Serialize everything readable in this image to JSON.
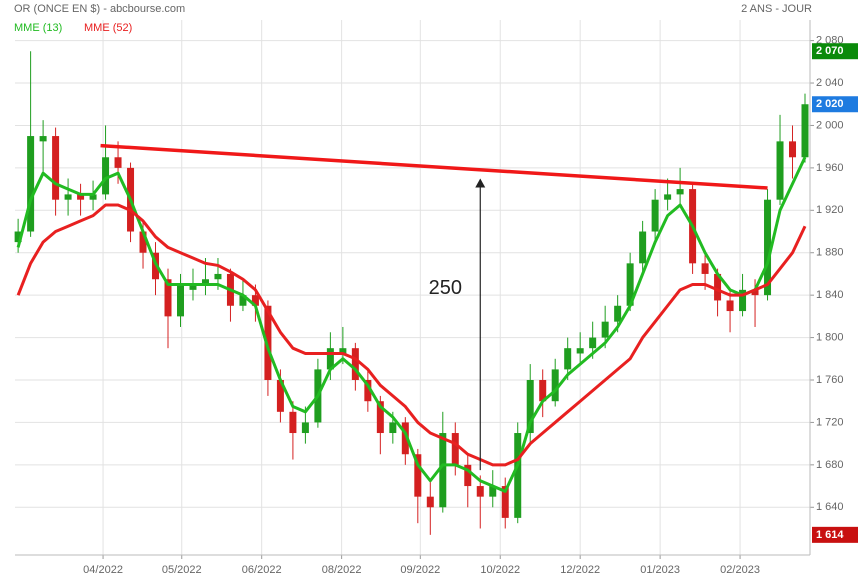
{
  "chart_data": {
    "type": "candlestick",
    "title": "OR (ONCE EN $) - abcbourse.com",
    "subtitle": "2 ANS - JOUR",
    "up_color": "#1f9e1f",
    "down_color": "#d42020",
    "ohlc": [
      [
        1890,
        1912,
        1880,
        1900
      ],
      [
        1900,
        2070,
        1895,
        1990
      ],
      [
        1985,
        2005,
        1955,
        1990
      ],
      [
        1990,
        1998,
        1915,
        1930
      ],
      [
        1930,
        1950,
        1915,
        1935
      ],
      [
        1935,
        1945,
        1915,
        1930
      ],
      [
        1930,
        1948,
        1920,
        1935
      ],
      [
        1935,
        2000,
        1930,
        1970
      ],
      [
        1970,
        1985,
        1945,
        1960
      ],
      [
        1960,
        1965,
        1890,
        1900
      ],
      [
        1900,
        1910,
        1865,
        1880
      ],
      [
        1880,
        1890,
        1840,
        1855
      ],
      [
        1855,
        1865,
        1790,
        1820
      ],
      [
        1820,
        1860,
        1810,
        1850
      ],
      [
        1845,
        1865,
        1835,
        1850
      ],
      [
        1850,
        1875,
        1840,
        1855
      ],
      [
        1855,
        1875,
        1845,
        1860
      ],
      [
        1860,
        1865,
        1815,
        1830
      ],
      [
        1830,
        1855,
        1825,
        1840
      ],
      [
        1840,
        1850,
        1815,
        1830
      ],
      [
        1830,
        1835,
        1745,
        1760
      ],
      [
        1760,
        1770,
        1720,
        1730
      ],
      [
        1730,
        1740,
        1685,
        1710
      ],
      [
        1710,
        1735,
        1700,
        1720
      ],
      [
        1720,
        1780,
        1715,
        1770
      ],
      [
        1770,
        1805,
        1760,
        1790
      ],
      [
        1785,
        1810,
        1775,
        1790
      ],
      [
        1790,
        1795,
        1750,
        1760
      ],
      [
        1760,
        1770,
        1730,
        1740
      ],
      [
        1740,
        1745,
        1690,
        1710
      ],
      [
        1710,
        1730,
        1700,
        1720
      ],
      [
        1720,
        1725,
        1680,
        1690
      ],
      [
        1690,
        1695,
        1625,
        1650
      ],
      [
        1650,
        1665,
        1614,
        1640
      ],
      [
        1640,
        1730,
        1635,
        1710
      ],
      [
        1710,
        1720,
        1670,
        1680
      ],
      [
        1680,
        1690,
        1640,
        1660
      ],
      [
        1660,
        1670,
        1620,
        1650
      ],
      [
        1650,
        1675,
        1640,
        1660
      ],
      [
        1660,
        1668,
        1620,
        1630
      ],
      [
        1630,
        1720,
        1625,
        1710
      ],
      [
        1710,
        1775,
        1700,
        1760
      ],
      [
        1760,
        1770,
        1725,
        1740
      ],
      [
        1740,
        1780,
        1735,
        1770
      ],
      [
        1770,
        1800,
        1760,
        1790
      ],
      [
        1785,
        1805,
        1775,
        1790
      ],
      [
        1790,
        1815,
        1780,
        1800
      ],
      [
        1800,
        1830,
        1790,
        1815
      ],
      [
        1815,
        1840,
        1805,
        1830
      ],
      [
        1830,
        1880,
        1825,
        1870
      ],
      [
        1870,
        1910,
        1860,
        1900
      ],
      [
        1900,
        1940,
        1890,
        1930
      ],
      [
        1930,
        1950,
        1920,
        1935
      ],
      [
        1935,
        1960,
        1925,
        1940
      ],
      [
        1940,
        1945,
        1860,
        1870
      ],
      [
        1870,
        1880,
        1845,
        1860
      ],
      [
        1860,
        1865,
        1820,
        1835
      ],
      [
        1835,
        1845,
        1805,
        1825
      ],
      [
        1825,
        1860,
        1820,
        1845
      ],
      [
        1845,
        1855,
        1810,
        1840
      ],
      [
        1840,
        1940,
        1835,
        1930
      ],
      [
        1930,
        2010,
        1925,
        1985
      ],
      [
        1985,
        2000,
        1950,
        1970
      ],
      [
        1970,
        2030,
        1965,
        2020
      ]
    ],
    "series": [
      {
        "name": "MME (13)",
        "color": "#22bb22",
        "values": [
          1885,
          1930,
          1955,
          1945,
          1940,
          1935,
          1935,
          1950,
          1955,
          1930,
          1900,
          1870,
          1850,
          1850,
          1850,
          1850,
          1850,
          1845,
          1840,
          1830,
          1790,
          1760,
          1735,
          1730,
          1745,
          1770,
          1780,
          1770,
          1755,
          1735,
          1725,
          1710,
          1680,
          1665,
          1680,
          1680,
          1675,
          1665,
          1660,
          1655,
          1680,
          1720,
          1740,
          1750,
          1765,
          1775,
          1785,
          1795,
          1810,
          1830,
          1860,
          1890,
          1915,
          1925,
          1905,
          1880,
          1860,
          1845,
          1840,
          1845,
          1870,
          1920,
          1945,
          1970
        ]
      },
      {
        "name": "MME (52)",
        "color": "#e82020",
        "values": [
          1840,
          1870,
          1890,
          1900,
          1905,
          1910,
          1915,
          1925,
          1925,
          1920,
          1910,
          1895,
          1885,
          1880,
          1875,
          1870,
          1868,
          1862,
          1855,
          1845,
          1825,
          1805,
          1790,
          1785,
          1785,
          1785,
          1785,
          1780,
          1770,
          1755,
          1745,
          1735,
          1720,
          1710,
          1705,
          1700,
          1690,
          1685,
          1680,
          1680,
          1685,
          1700,
          1710,
          1720,
          1730,
          1740,
          1750,
          1760,
          1770,
          1780,
          1800,
          1815,
          1830,
          1845,
          1850,
          1850,
          1845,
          1840,
          1840,
          1845,
          1850,
          1865,
          1880,
          1905
        ]
      }
    ],
    "xlim": [
      -0.25,
      63.4
    ],
    "ylim": [
      1595,
      2090
    ],
    "xticks": [
      {
        "value": 6.8,
        "label": "04/2022"
      },
      {
        "value": 13.1,
        "label": "05/2022"
      },
      {
        "value": 19.5,
        "label": "06/2022"
      },
      {
        "value": 25.9,
        "label": "08/2022"
      },
      {
        "value": 32.2,
        "label": "09/2022"
      },
      {
        "value": 38.6,
        "label": "10/2022"
      },
      {
        "value": 45,
        "label": "12/2022"
      },
      {
        "value": 51.4,
        "label": "01/2023"
      },
      {
        "value": 57.8,
        "label": "02/2023"
      }
    ],
    "yticks": [
      {
        "value": 1640,
        "label": "1 640"
      },
      {
        "value": 1680,
        "label": "1 680"
      },
      {
        "value": 1720,
        "label": "1 720"
      },
      {
        "value": 1760,
        "label": "1 760"
      },
      {
        "value": 1800,
        "label": "1 800"
      },
      {
        "value": 1840,
        "label": "1 840"
      },
      {
        "value": 1880,
        "label": "1 880"
      },
      {
        "value": 1920,
        "label": "1 920"
      },
      {
        "value": 1960,
        "label": "1 960"
      },
      {
        "value": 2000,
        "label": "2 000"
      },
      {
        "value": 2040,
        "label": "2 040"
      },
      {
        "value": 2080,
        "label": "2 080"
      }
    ],
    "grid": true,
    "price_labels": [
      {
        "value": 2070,
        "label": "2 070",
        "color": "#0a8a0a"
      },
      {
        "value": 2020,
        "label": "2 020",
        "color": "#1e7be0"
      },
      {
        "value": 1614,
        "label": "1 614",
        "color": "#c81010"
      }
    ],
    "trendline": {
      "x": [
        6.6,
        60
      ],
      "y": [
        1981,
        1941
      ],
      "color": "#f01818"
    },
    "arrow": {
      "x": 37,
      "y": [
        1675,
        1950
      ]
    },
    "note": {
      "text": "250",
      "x": 34.2,
      "y": 1846
    }
  }
}
